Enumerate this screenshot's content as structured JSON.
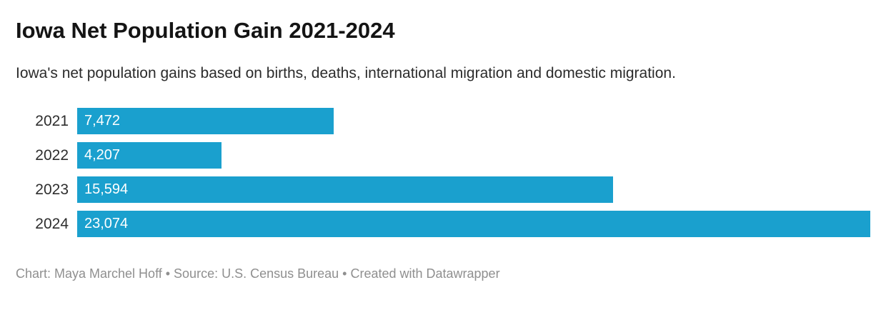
{
  "header": {
    "title": "Iowa Net Population Gain 2021-2024",
    "subtitle": "Iowa's net population gains based on births, deaths, international migration and domestic migration."
  },
  "chart_data": {
    "type": "bar",
    "orientation": "horizontal",
    "title": "Iowa Net Population Gain 2021-2024",
    "categories": [
      "2021",
      "2022",
      "2023",
      "2024"
    ],
    "values": [
      7472,
      4207,
      15594,
      23074
    ],
    "value_labels": [
      "7,472",
      "4,207",
      "15,594",
      "23,074"
    ],
    "xlabel": "",
    "ylabel": "",
    "xlim": [
      0,
      23074
    ],
    "grid": false,
    "legend": false,
    "bar_color": "#1aa0ce",
    "value_label_position": "inside-start",
    "value_label_color": "#ffffff"
  },
  "footer": {
    "credit": "Chart: Maya Marchel Hoff • Source: U.S. Census Bureau • Created with Datawrapper"
  }
}
